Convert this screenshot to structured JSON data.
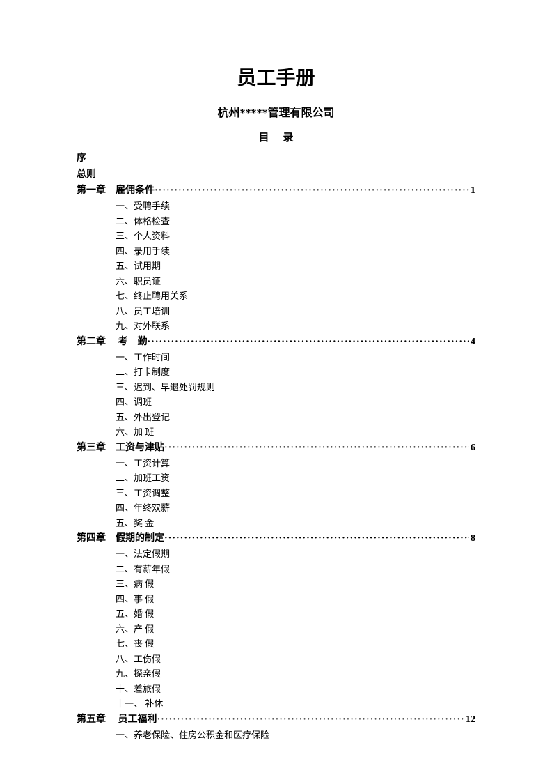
{
  "title": "员工手册",
  "subtitle": "杭州*****管理有限公司",
  "tocHeader": "目录",
  "preface": "序",
  "general": "总则",
  "chapters": [
    {
      "label": "第一章　雇佣条件",
      "page": "1",
      "items": [
        "一、受聘手续",
        "二、体格检查",
        "三、个人资料",
        "四、录用手续",
        "五、试用期",
        "六、职员证",
        "七、终止聘用关系",
        "八、员工培训",
        "九、对外联系"
      ]
    },
    {
      "label": "第二章　 考　勤",
      "page": "4",
      "items": [
        "一、工作时间",
        "二、打卡制度",
        "三、迟到、早退处罚规则",
        "四、调班",
        "五、外出登记",
        "六、加 班"
      ]
    },
    {
      "label": "第三章　工资与津贴",
      "page": "6",
      "items": [
        "一、工资计算",
        "二、加班工资",
        "三、工资调整",
        "四、年终双薪",
        "五、奖 金"
      ]
    },
    {
      "label": "第四章　假期的制定",
      "page": "8",
      "items": [
        "一、法定假期",
        "二、有薪年假",
        "三、病 假",
        "四、事 假",
        "五、婚 假",
        "六、产 假",
        "七、丧 假",
        "八、工伤假",
        "九、探亲假",
        "十、差旅假",
        "十一、 补休"
      ]
    },
    {
      "label": "第五章　 员工福利",
      "page": "12",
      "items": [
        "一、养老保险、住房公积金和医疗保险"
      ]
    }
  ]
}
